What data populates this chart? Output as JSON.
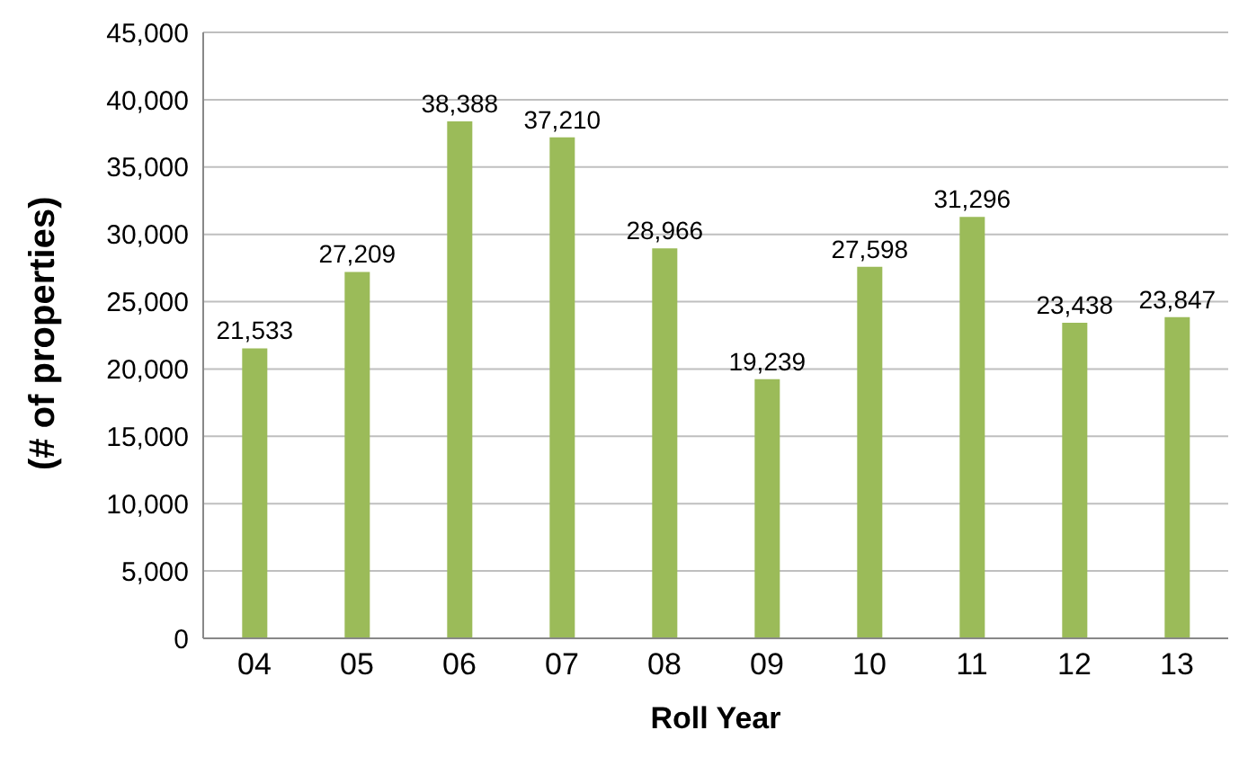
{
  "chart_data": {
    "type": "bar",
    "xlabel": "Roll Year",
    "ylabel": "(# of properties)",
    "categories": [
      "04",
      "05",
      "06",
      "07",
      "08",
      "09",
      "10",
      "11",
      "12",
      "13"
    ],
    "values": [
      21533,
      27209,
      38388,
      37210,
      28966,
      19239,
      27598,
      31296,
      23438,
      23847
    ],
    "value_labels": [
      "21,533",
      "27,209",
      "38,388",
      "37,210",
      "28,966",
      "19,239",
      "27,598",
      "31,296",
      "23,438",
      "23,847"
    ],
    "color": "#9bbb59",
    "grid": "y",
    "legend": false,
    "ylim": [
      0,
      45000
    ],
    "yticks": [
      {
        "value": 0,
        "label": "0"
      },
      {
        "value": 5000,
        "label": "5,000"
      },
      {
        "value": 10000,
        "label": "10,000"
      },
      {
        "value": 15000,
        "label": "15,000"
      },
      {
        "value": 20000,
        "label": "20,000"
      },
      {
        "value": 25000,
        "label": "25,000"
      },
      {
        "value": 30000,
        "label": "30,000"
      },
      {
        "value": 35000,
        "label": "35,000"
      },
      {
        "value": 40000,
        "label": "40,000"
      },
      {
        "value": 45000,
        "label": "45,000"
      }
    ]
  }
}
